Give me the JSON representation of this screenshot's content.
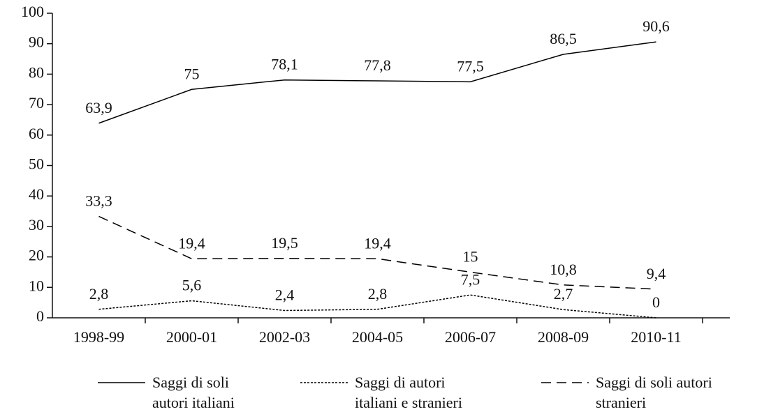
{
  "chart_data": {
    "type": "line",
    "categories": [
      "1998-99",
      "2000-01",
      "2002-03",
      "2004-05",
      "2006-07",
      "2008-09",
      "2010-11"
    ],
    "series": [
      {
        "name": "Saggi di soli autori italiani",
        "color": "#000000",
        "dash": "solid",
        "values": [
          63.9,
          75,
          78.1,
          77.8,
          77.5,
          86.5,
          90.6
        ],
        "value_labels": [
          "63,9",
          "75",
          "78,1",
          "77,8",
          "77,5",
          "86,5",
          "90,6"
        ]
      },
      {
        "name": "Saggi di autori italiani e stranieri",
        "color": "#000000",
        "dash": "dotted",
        "values": [
          2.8,
          5.6,
          2.4,
          2.8,
          7.5,
          2.7,
          0
        ],
        "value_labels": [
          "2,8",
          "5,6",
          "2,4",
          "2,8",
          "7,5",
          "2,7",
          "0"
        ]
      },
      {
        "name": "Saggi di soli autori stranieri",
        "color": "#000000",
        "dash": "dashed",
        "values": [
          33.3,
          19.4,
          19.5,
          19.4,
          15,
          10.8,
          9.4
        ],
        "value_labels": [
          "33,3",
          "19,4",
          "19,5",
          "19,4",
          "15",
          "10,8",
          "9,4"
        ]
      }
    ],
    "ylim": [
      0,
      100
    ],
    "yticks": [
      0,
      10,
      20,
      30,
      40,
      50,
      60,
      70,
      80,
      90,
      100
    ],
    "grid": false
  }
}
